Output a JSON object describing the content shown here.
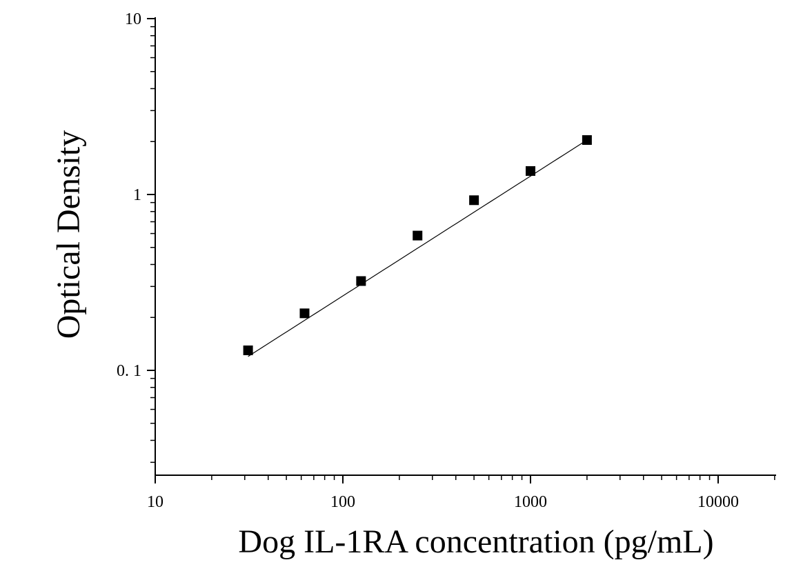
{
  "chart_data": {
    "type": "scatter",
    "xlabel": "Dog IL-1RA concentration (pg/mL)",
    "ylabel": "Optical Density",
    "xscale": "log",
    "yscale": "log",
    "xlim": [
      10,
      20000
    ],
    "ylim": [
      0.025,
      10
    ],
    "x_ticks": [
      {
        "value": 10,
        "label": "10"
      },
      {
        "value": 100,
        "label": "100"
      },
      {
        "value": 1000,
        "label": "1000"
      },
      {
        "value": 10000,
        "label": "10000"
      }
    ],
    "y_ticks": [
      {
        "value": 0.1,
        "label": "0. 1"
      },
      {
        "value": 1,
        "label": "1"
      },
      {
        "value": 10,
        "label": "10"
      }
    ],
    "grid": false,
    "marker": "square",
    "colors": {
      "axis": "#000000",
      "marker": "#000000",
      "curve": "#000000"
    },
    "series": [
      {
        "x": [
          31.25,
          62.5,
          125,
          250,
          500,
          1000,
          2000
        ],
        "y": [
          0.13,
          0.211,
          0.322,
          0.584,
          0.928,
          1.36,
          2.04
        ]
      }
    ],
    "fit_curve": {
      "x": [
        31.25,
        2000
      ],
      "y": [
        0.12,
        2.04
      ]
    }
  }
}
